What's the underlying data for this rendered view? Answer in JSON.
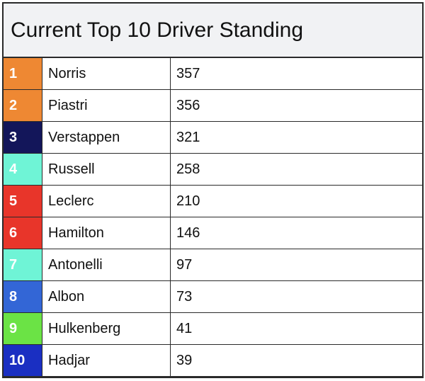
{
  "title": "Current Top 10 Driver Standing",
  "rows": [
    {
      "pos": "1",
      "driver": "Norris",
      "points": "357",
      "color": "#EE8833"
    },
    {
      "pos": "2",
      "driver": "Piastri",
      "points": "356",
      "color": "#EE8833"
    },
    {
      "pos": "3",
      "driver": "Verstappen",
      "points": "321",
      "color": "#13165A"
    },
    {
      "pos": "4",
      "driver": "Russell",
      "points": "258",
      "color": "#6FF4D6"
    },
    {
      "pos": "5",
      "driver": "Leclerc",
      "points": "210",
      "color": "#E8352A"
    },
    {
      "pos": "6",
      "driver": "Hamilton",
      "points": "146",
      "color": "#E8352A"
    },
    {
      "pos": "7",
      "driver": "Antonelli",
      "points": "97",
      "color": "#6FF4D6"
    },
    {
      "pos": "8",
      "driver": "Albon",
      "points": "73",
      "color": "#3366D6"
    },
    {
      "pos": "9",
      "driver": "Hulkenberg",
      "points": "41",
      "color": "#6BE345"
    },
    {
      "pos": "10",
      "driver": "Hadjar",
      "points": "39",
      "color": "#1A2FC2"
    }
  ]
}
